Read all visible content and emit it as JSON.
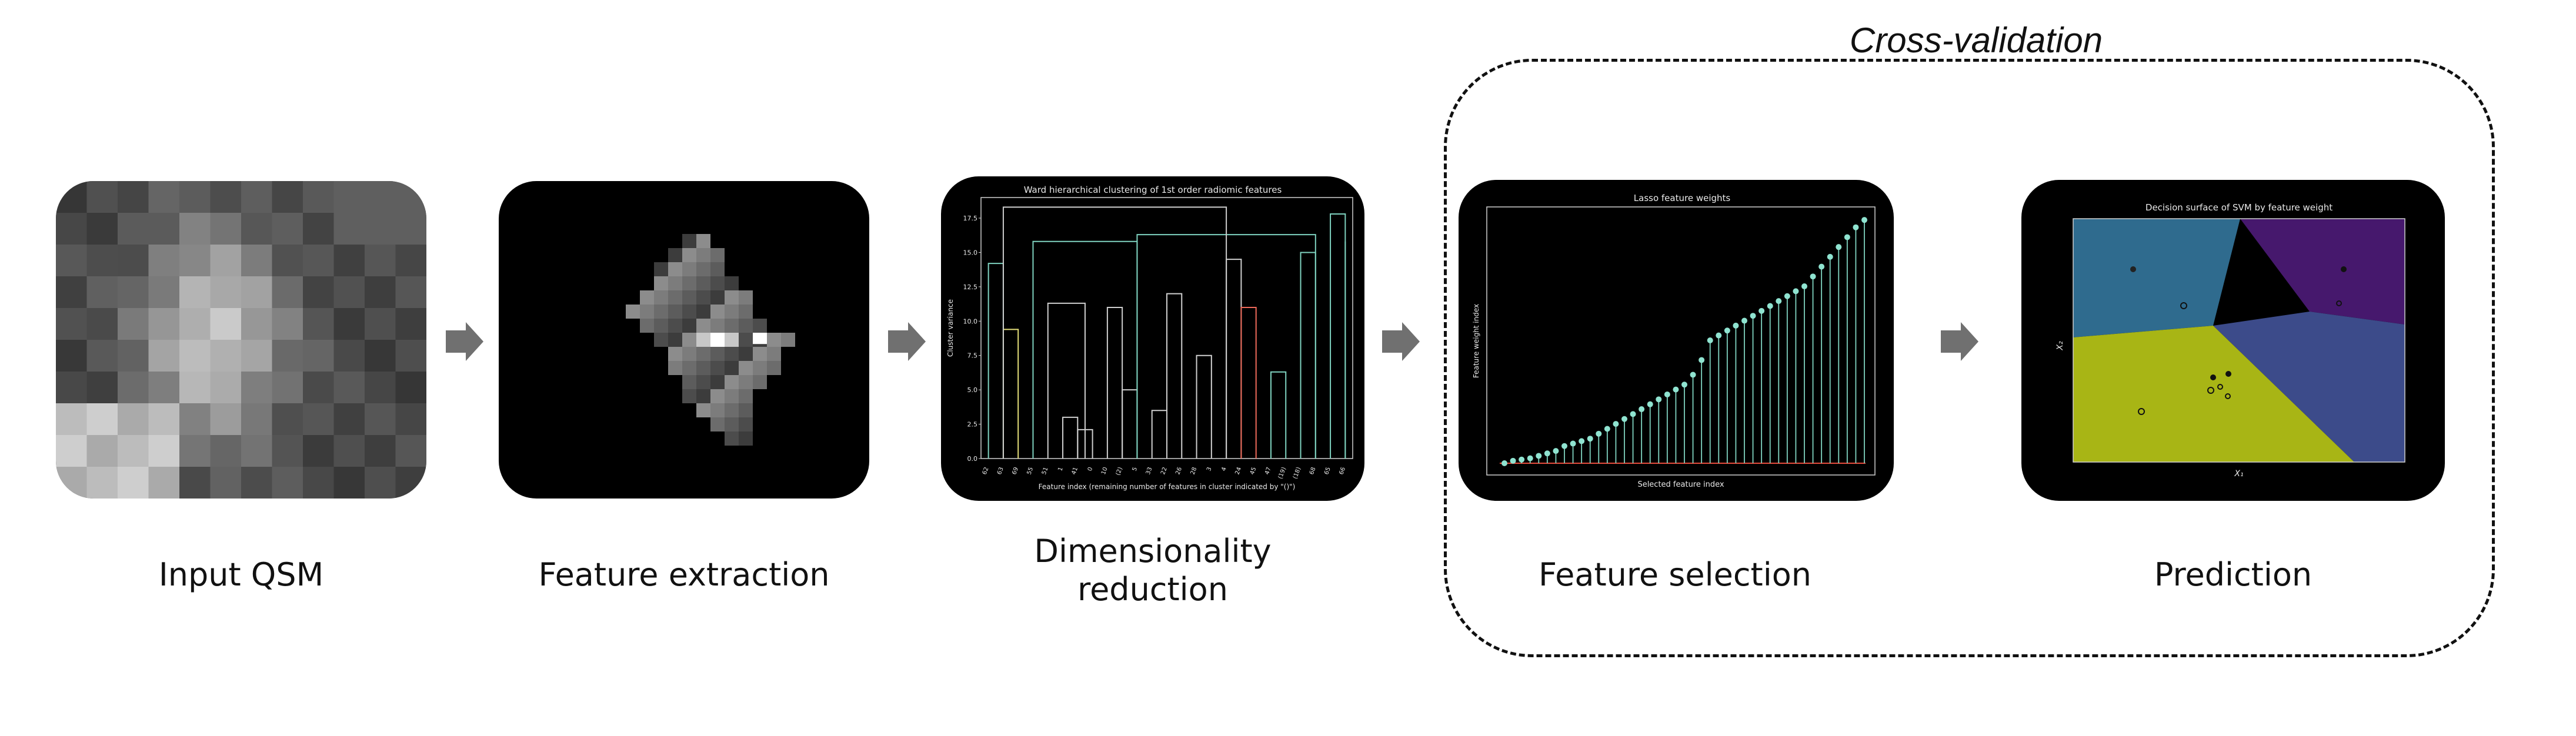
{
  "cross_validation": {
    "title": "Cross-validation"
  },
  "steps": [
    {
      "label": "Input QSM"
    },
    {
      "label": "Feature extraction"
    },
    {
      "label": "Dimensionality\nreduction"
    },
    {
      "label": "Feature selection"
    },
    {
      "label": "Prediction"
    }
  ],
  "dendrogram": {
    "title": "Ward hierarchical clustering of 1st order radiomic features",
    "ylabel": "Cluster variance",
    "xlabel": "Feature index (remaining number of features in cluster indicated by \"()\")",
    "yticks": [
      "0.0",
      "2.5",
      "5.0",
      "7.5",
      "10.0",
      "12.5",
      "15.0",
      "17.5"
    ],
    "leaf_labels": [
      "62",
      "63",
      "69",
      "55",
      "51",
      "1",
      "41",
      "0",
      "10",
      "(2)",
      "5",
      "33",
      "22",
      "26",
      "28",
      "3",
      "4",
      "24",
      "45",
      "47",
      "(19)",
      "(18)",
      "68",
      "65",
      "66"
    ]
  },
  "lasso": {
    "title": "Lasso feature weights",
    "ylabel": "Feature weight index",
    "xlabel": "Selected feature index",
    "weights": [
      0.0,
      0.01,
      0.015,
      0.02,
      0.03,
      0.04,
      0.05,
      0.07,
      0.08,
      0.09,
      0.1,
      0.12,
      0.14,
      0.16,
      0.18,
      0.2,
      0.22,
      0.24,
      0.26,
      0.28,
      0.3,
      0.32,
      0.36,
      0.42,
      0.5,
      0.52,
      0.54,
      0.56,
      0.58,
      0.6,
      0.62,
      0.64,
      0.66,
      0.68,
      0.7,
      0.72,
      0.76,
      0.8,
      0.84,
      0.88,
      0.92,
      0.96,
      0.99
    ]
  },
  "svm": {
    "title": "Decision surface of SVM by feature weight",
    "xlabel": "X₁",
    "ylabel": "X₂",
    "colors": {
      "teal": "#2f6b8e",
      "purple": "#46186d",
      "indigo": "#3c4b8a",
      "olive": "#a8b515"
    }
  }
}
